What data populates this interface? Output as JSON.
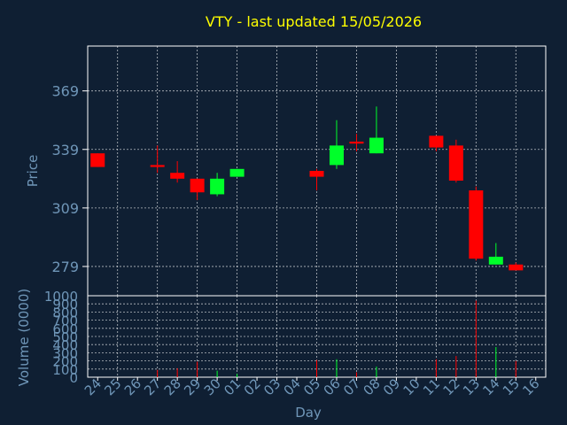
{
  "chart_data": {
    "type": "candlestick",
    "title": "VTY - last updated 15/05/2026",
    "xlabel": "Day",
    "ylabel": "Price",
    "volume_label": "Volume (0000)",
    "grid": true,
    "price_ylim": [
      264,
      392
    ],
    "price_ticks": [
      279,
      309,
      339,
      369
    ],
    "volume_ylim": [
      0,
      1000
    ],
    "volume_ticks": [
      0,
      100,
      200,
      300,
      400,
      500,
      600,
      700,
      800,
      900,
      1000
    ],
    "x_ticks": [
      "24",
      "25",
      "26",
      "27",
      "28",
      "29",
      "30",
      "01",
      "02",
      "03",
      "04",
      "05",
      "06",
      "07",
      "08",
      "09",
      "10",
      "11",
      "12",
      "13",
      "14",
      "15",
      "16"
    ],
    "colors": {
      "up": "#00ff2a",
      "down": "#ff0000",
      "title": "#ffff00",
      "axis_text": "#6f96b8",
      "grid": "#ffffff",
      "background": "#0f1f33"
    },
    "candles": [
      {
        "day": "24",
        "open": 337,
        "high": 337,
        "low": 330,
        "close": 330,
        "volume": 0
      },
      {
        "day": "27",
        "open": 331,
        "high": 341,
        "low": 327,
        "close": 330,
        "volume": 90
      },
      {
        "day": "28",
        "open": 327,
        "high": 333,
        "low": 322,
        "close": 324,
        "volume": 110
      },
      {
        "day": "29",
        "open": 324,
        "high": 324,
        "low": 313,
        "close": 317,
        "volume": 190
      },
      {
        "day": "30",
        "open": 316,
        "high": 327,
        "low": 315,
        "close": 324,
        "volume": 80
      },
      {
        "day": "01",
        "open": 325,
        "high": 329,
        "low": 325,
        "close": 329,
        "volume": 40
      },
      {
        "day": "05",
        "open": 328,
        "high": 329,
        "low": 318,
        "close": 325,
        "volume": 210
      },
      {
        "day": "06",
        "open": 331,
        "high": 354,
        "low": 329,
        "close": 341,
        "volume": 220
      },
      {
        "day": "07",
        "open": 343,
        "high": 347,
        "low": 338,
        "close": 342,
        "volume": 60
      },
      {
        "day": "08",
        "open": 337,
        "high": 361,
        "low": 337,
        "close": 345,
        "volume": 130
      },
      {
        "day": "11",
        "open": 346,
        "high": 346,
        "low": 338,
        "close": 340,
        "volume": 220
      },
      {
        "day": "12",
        "open": 341,
        "high": 344,
        "low": 322,
        "close": 323,
        "volume": 260
      },
      {
        "day": "13",
        "open": 318,
        "high": 320,
        "low": 282,
        "close": 283,
        "volume": 940
      },
      {
        "day": "14",
        "open": 280,
        "high": 291,
        "low": 280,
        "close": 284,
        "volume": 370
      },
      {
        "day": "15",
        "open": 280,
        "high": 281,
        "low": 277,
        "close": 277,
        "volume": 200
      }
    ]
  }
}
